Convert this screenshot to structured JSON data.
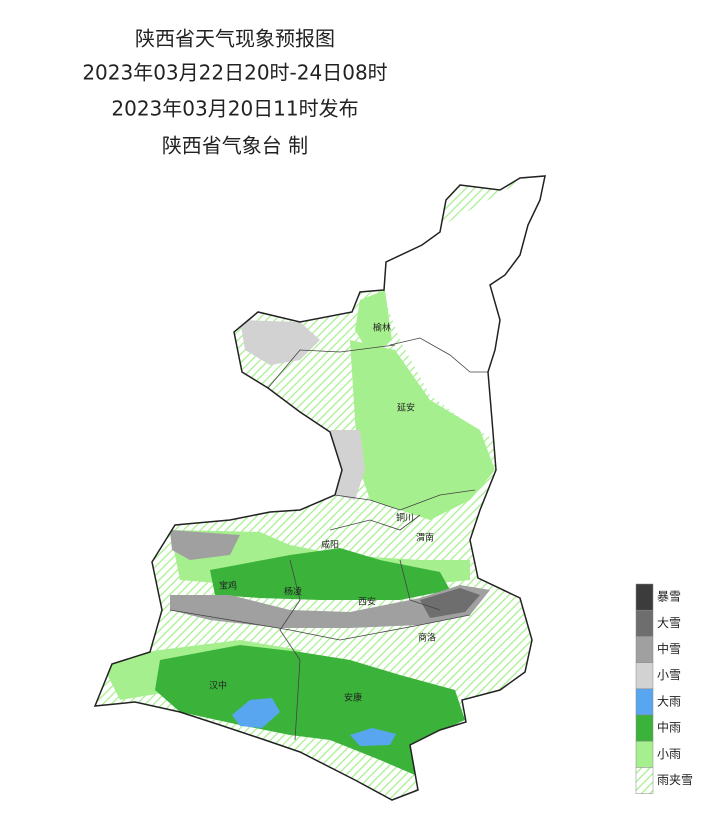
{
  "header": {
    "lines": [
      "陕西省天气现象预报图",
      "2023年03月22日20时-24日08时",
      "2023年03月20日11时发布",
      "陕西省气象台 制"
    ]
  },
  "cities": [
    "榆林",
    "延安",
    "铜川",
    "渭南",
    "咸阳",
    "宝鸡",
    "杨凌",
    "西安",
    "商洛",
    "汉中",
    "安康"
  ],
  "legend": [
    {
      "label": "暴雪",
      "color": "#3c3c3c"
    },
    {
      "label": "大雪",
      "color": "#6e6e6e"
    },
    {
      "label": "中雪",
      "color": "#a0a0a0"
    },
    {
      "label": "小雪",
      "color": "#d2d2d2"
    },
    {
      "label": "大雨",
      "color": "#58a6f0"
    },
    {
      "label": "中雨",
      "color": "#3bb33b"
    },
    {
      "label": "小雨",
      "color": "#a6ef8e"
    },
    {
      "label": "雨夹雪",
      "color": "hatch"
    }
  ]
}
